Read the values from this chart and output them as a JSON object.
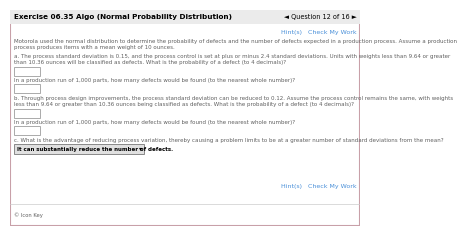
{
  "title": "Exercise 06.35 Algo (Normal Probability Distribution)",
  "question_nav": "◄ Question 12 of 16 ►",
  "hint_check": "Hint(s)   Check My Work",
  "intro_line1": "Motorola used the normal distribution to determine the probability of defects and the number of defects expected in a production process. Assume a production",
  "intro_line2": "process produces items with a mean weight of 10 ounces.",
  "part_a_line1": "a. The process standard deviation is 0.15, and the process control is set at plus or minus 2.4 standard deviations. Units with weights less than 9.64 or greater",
  "part_a_line2": "than 10.36 ounces will be classified as defects. What is the probability of a defect (to 4 decimals)?",
  "part_a_q2": "In a production run of 1,000 parts, how many defects would be found (to the nearest whole number)?",
  "part_b_line1": "b. Through process design improvements, the process standard deviation can be reduced to 0.12. Assume the process control remains the same, with weights",
  "part_b_line2": "less than 9.64 or greater than 10.36 ounces being classified as defects. What is the probability of a defect (to 4 decimals)?",
  "part_b_q2": "In a production run of 1,000 parts, how many defects would be found (to the nearest whole number)?",
  "part_c": "c. What is the advantage of reducing process variation, thereby causing a problem limits to be at a greater number of standard deviations from the mean?",
  "part_c_answer": "It can substantially reduce the number of defects.",
  "hint_check2": "Hint(s)   Check My Work",
  "icon_key": "© Icon Key",
  "bg_color": "#ffffff",
  "border_color": "#c8a0a8",
  "title_color": "#000000",
  "body_color": "#606060",
  "hint_color": "#4a90d9",
  "header_bg": "#ebebeb",
  "input_box_color": "#ffffff",
  "input_box_border": "#aaaaaa",
  "answer_box_color": "#e0e0e0",
  "answer_box_border": "#888888",
  "sep_line_color": "#cccccc"
}
